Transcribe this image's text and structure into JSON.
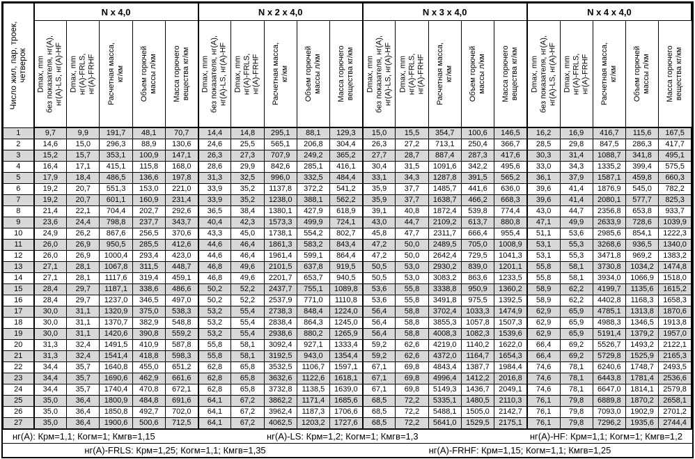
{
  "header": {
    "row_label": "Число жил, пар, троек,\nчетверок",
    "groups": [
      {
        "title": "N x 4,0"
      },
      {
        "title": "N x 2 x 4,0"
      },
      {
        "title": "N x 3 x 4,0"
      },
      {
        "title": "N x 4 x 4,0"
      }
    ],
    "columns": [
      "Dmax, mm\nбез показателя, нг(А),\nнг(А)-LS, нг(А)-HF",
      "Dmax, mm\nнг(А)-FRLS,\nнг(А)-FRHF",
      "Расчетная масса,\nкг/км",
      "Объем горючей\nмассы л/км",
      "Масса горючего\nвещества кг/км"
    ]
  },
  "rows": [
    {
      "n": "1",
      "values": [
        "9,7",
        "9,9",
        "191,7",
        "48,1",
        "70,7",
        "14,4",
        "14,8",
        "295,1",
        "88,1",
        "129,3",
        "15,0",
        "15,5",
        "354,7",
        "100,6",
        "146,5",
        "16,2",
        "16,9",
        "416,7",
        "115,6",
        "167,5"
      ]
    },
    {
      "n": "2",
      "values": [
        "14,6",
        "15,0",
        "296,3",
        "88,9",
        "130,6",
        "24,6",
        "25,5",
        "565,1",
        "206,8",
        "304,4",
        "26,3",
        "27,2",
        "713,1",
        "250,4",
        "366,7",
        "28,5",
        "29,8",
        "847,5",
        "286,3",
        "417,7"
      ]
    },
    {
      "n": "3",
      "values": [
        "15,2",
        "15,7",
        "353,1",
        "100,9",
        "147,1",
        "26,3",
        "27,3",
        "707,9",
        "249,2",
        "365,2",
        "27,7",
        "28,7",
        "887,4",
        "287,3",
        "417,6",
        "30,3",
        "31,4",
        "1088,7",
        "341,8",
        "495,1"
      ]
    },
    {
      "n": "4",
      "values": [
        "16,4",
        "17,1",
        "415,1",
        "115,8",
        "168,0",
        "28,6",
        "29,9",
        "842,6",
        "285,1",
        "416,1",
        "30,4",
        "31,5",
        "1091,6",
        "342,2",
        "495,6",
        "33,0",
        "34,3",
        "1335,2",
        "399,4",
        "575,5"
      ]
    },
    {
      "n": "5",
      "values": [
        "17,9",
        "18,4",
        "486,5",
        "136,6",
        "197,8",
        "31,3",
        "32,5",
        "996,0",
        "332,5",
        "484,4",
        "33,1",
        "34,3",
        "1287,8",
        "391,5",
        "565,2",
        "36,1",
        "37,9",
        "1587,1",
        "459,8",
        "660,3"
      ]
    },
    {
      "n": "6",
      "values": [
        "19,2",
        "20,7",
        "551,3",
        "153,0",
        "221,0",
        "33,9",
        "35,2",
        "1137,8",
        "372,2",
        "541,2",
        "35,9",
        "37,7",
        "1485,7",
        "441,6",
        "636,0",
        "39,6",
        "41,4",
        "1876,9",
        "545,0",
        "782,2"
      ]
    },
    {
      "n": "7",
      "values": [
        "19,2",
        "20,7",
        "601,1",
        "160,9",
        "231,4",
        "33,9",
        "35,2",
        "1238,0",
        "388,1",
        "562,2",
        "35,9",
        "37,7",
        "1638,7",
        "466,2",
        "668,3",
        "39,6",
        "41,4",
        "2080,1",
        "577,7",
        "825,3"
      ]
    },
    {
      "n": "8",
      "values": [
        "21,4",
        "22,1",
        "704,4",
        "202,7",
        "292,6",
        "36,5",
        "38,4",
        "1380,1",
        "427,9",
        "618,9",
        "39,1",
        "40,8",
        "1872,4",
        "539,8",
        "774,4",
        "43,0",
        "44,7",
        "2356,8",
        "653,8",
        "933,7"
      ]
    },
    {
      "n": "9",
      "values": [
        "23,6",
        "24,4",
        "798,8",
        "237,7",
        "343,7",
        "40,4",
        "42,3",
        "1573,3",
        "499,9",
        "724,1",
        "43,0",
        "44,7",
        "2109,2",
        "613,7",
        "880,8",
        "47,1",
        "49,9",
        "2633,9",
        "728,6",
        "1039,9"
      ]
    },
    {
      "n": "10",
      "values": [
        "24,9",
        "26,2",
        "867,6",
        "256,5",
        "370,6",
        "43,3",
        "45,0",
        "1738,1",
        "554,2",
        "802,7",
        "45,8",
        "47,7",
        "2311,7",
        "666,4",
        "955,4",
        "51,1",
        "53,6",
        "2985,6",
        "854,1",
        "1222,3"
      ]
    },
    {
      "n": "11",
      "values": [
        "26,0",
        "26,9",
        "950,5",
        "285,5",
        "412,6",
        "44,6",
        "46,4",
        "1861,3",
        "583,2",
        "843,4",
        "47,2",
        "50,0",
        "2489,5",
        "705,0",
        "1008,9",
        "53,1",
        "55,3",
        "3268,6",
        "936,5",
        "1340,0"
      ]
    },
    {
      "n": "12",
      "values": [
        "26,0",
        "26,9",
        "1000,4",
        "293,4",
        "423,0",
        "44,6",
        "46,4",
        "1961,4",
        "599,1",
        "864,4",
        "47,2",
        "50,0",
        "2642,4",
        "729,5",
        "1041,3",
        "53,1",
        "55,3",
        "3471,8",
        "969,2",
        "1383,2"
      ]
    },
    {
      "n": "13",
      "values": [
        "27,1",
        "28,1",
        "1067,8",
        "311,5",
        "448,7",
        "46,8",
        "49,6",
        "2101,5",
        "637,8",
        "919,5",
        "50,5",
        "53,0",
        "2930,2",
        "839,0",
        "1201,1",
        "55,8",
        "58,1",
        "3730,8",
        "1034,2",
        "1474,8"
      ]
    },
    {
      "n": "14",
      "values": [
        "27,1",
        "28,1",
        "1117,6",
        "319,4",
        "459,1",
        "46,8",
        "49,6",
        "2201,7",
        "653,7",
        "940,5",
        "50,5",
        "53,0",
        "3083,2",
        "863,6",
        "1233,5",
        "55,8",
        "58,1",
        "3934,0",
        "1066,9",
        "1518,0"
      ]
    },
    {
      "n": "15",
      "values": [
        "28,4",
        "29,7",
        "1187,1",
        "338,6",
        "486,6",
        "50,2",
        "52,2",
        "2437,7",
        "755,1",
        "1089,8",
        "53,6",
        "55,8",
        "3338,8",
        "950,9",
        "1360,2",
        "58,9",
        "62,2",
        "4199,7",
        "1135,6",
        "1615,2"
      ]
    },
    {
      "n": "16",
      "values": [
        "28,4",
        "29,7",
        "1237,0",
        "346,5",
        "497,0",
        "50,2",
        "52,2",
        "2537,9",
        "771,0",
        "1110,8",
        "53,6",
        "55,8",
        "3491,8",
        "975,5",
        "1392,5",
        "58,9",
        "62,2",
        "4402,8",
        "1168,3",
        "1658,3"
      ]
    },
    {
      "n": "17",
      "values": [
        "30,0",
        "31,1",
        "1320,9",
        "375,0",
        "538,3",
        "53,2",
        "55,4",
        "2738,3",
        "848,4",
        "1224,0",
        "56,4",
        "58,8",
        "3702,4",
        "1033,3",
        "1474,9",
        "62,9",
        "65,9",
        "4785,1",
        "1313,8",
        "1870,6"
      ]
    },
    {
      "n": "18",
      "values": [
        "30,0",
        "31,1",
        "1370,7",
        "382,9",
        "548,8",
        "53,2",
        "55,4",
        "2838,4",
        "864,3",
        "1245,0",
        "56,4",
        "58,8",
        "3855,3",
        "1057,8",
        "1507,3",
        "62,9",
        "65,9",
        "4988,3",
        "1346,5",
        "1913,8"
      ]
    },
    {
      "n": "19",
      "values": [
        "30,0",
        "31,1",
        "1420,6",
        "390,8",
        "559,2",
        "53,2",
        "55,4",
        "2938,6",
        "880,2",
        "1265,9",
        "56,4",
        "58,8",
        "4008,3",
        "1082,3",
        "1539,6",
        "62,9",
        "65,9",
        "5191,4",
        "1379,2",
        "1957,0"
      ]
    },
    {
      "n": "20",
      "values": [
        "31,3",
        "32,4",
        "1491,5",
        "410,9",
        "587,8",
        "55,8",
        "58,1",
        "3092,4",
        "927,1",
        "1333,4",
        "59,2",
        "62,6",
        "4219,0",
        "1140,2",
        "1622,0",
        "66,4",
        "69,2",
        "5526,7",
        "1493,2",
        "2122,1"
      ]
    },
    {
      "n": "21",
      "values": [
        "31,3",
        "32,4",
        "1541,4",
        "418,8",
        "598,3",
        "55,8",
        "58,1",
        "3192,5",
        "943,0",
        "1354,4",
        "59,2",
        "62,6",
        "4372,0",
        "1164,7",
        "1654,3",
        "66,4",
        "69,2",
        "5729,8",
        "1525,9",
        "2165,3"
      ]
    },
    {
      "n": "22",
      "values": [
        "34,4",
        "35,7",
        "1640,8",
        "455,0",
        "651,2",
        "62,8",
        "65,8",
        "3532,5",
        "1106,7",
        "1597,1",
        "67,1",
        "69,8",
        "4843,4",
        "1387,7",
        "1984,4",
        "74,6",
        "78,1",
        "6240,6",
        "1748,7",
        "2493,5"
      ]
    },
    {
      "n": "23",
      "values": [
        "34,4",
        "35,7",
        "1690,6",
        "462,9",
        "661,6",
        "62,8",
        "65,8",
        "3632,6",
        "1122,6",
        "1618,1",
        "67,1",
        "69,8",
        "4996,4",
        "1412,2",
        "2016,8",
        "74,6",
        "78,1",
        "6443,8",
        "1781,4",
        "2536,6"
      ]
    },
    {
      "n": "24",
      "values": [
        "34,4",
        "35,7",
        "1740,4",
        "470,8",
        "672,1",
        "62,8",
        "65,8",
        "3732,8",
        "1138,5",
        "1639,0",
        "67,1",
        "69,8",
        "5149,3",
        "1436,7",
        "2049,1",
        "74,6",
        "78,1",
        "6647,0",
        "1814,1",
        "2579,8"
      ]
    },
    {
      "n": "25",
      "values": [
        "35,0",
        "36,4",
        "1800,9",
        "484,8",
        "691,6",
        "64,1",
        "67,2",
        "3862,2",
        "1171,4",
        "1685,6",
        "68,5",
        "72,2",
        "5335,1",
        "1480,5",
        "2110,3",
        "76,1",
        "79,8",
        "6889,8",
        "1870,2",
        "2658,1"
      ]
    },
    {
      "n": "26",
      "values": [
        "35,0",
        "36,4",
        "1850,8",
        "492,7",
        "702,0",
        "64,1",
        "67,2",
        "3962,4",
        "1187,3",
        "1706,6",
        "68,5",
        "72,2",
        "5488,1",
        "1505,0",
        "2142,7",
        "76,1",
        "79,8",
        "7093,0",
        "1902,9",
        "2701,2"
      ]
    },
    {
      "n": "27",
      "values": [
        "35,0",
        "36,4",
        "1900,6",
        "500,6",
        "712,5",
        "64,1",
        "67,2",
        "4062,5",
        "1203,2",
        "1727,6",
        "68,5",
        "72,2",
        "5641,0",
        "1529,5",
        "2175,1",
        "76,1",
        "79,8",
        "7296,2",
        "1935,6",
        "2744,4"
      ]
    }
  ],
  "footer": {
    "line1": [
      "нг(А): Крм=1,1;  Когм=1;  Кмгв=1,15",
      "нг(А)-LS: Крм=1,2;  Когм=1;  Кмгв=1,3",
      "нг(А)-HF: Крм=1,1;  Когм=1;  Кмгв=1,2"
    ],
    "line2": [
      "нг(А)-FRLS: Крм=1,25;  Когм=1,1;  Кмгв=1,35",
      "нг(А)-FRHF: Крм=1,15;  Когм=1,1;  Кмгв=1,25"
    ]
  },
  "colors": {
    "row_alt": "#d8d8d8",
    "border": "#000000",
    "background": "#ffffff"
  }
}
